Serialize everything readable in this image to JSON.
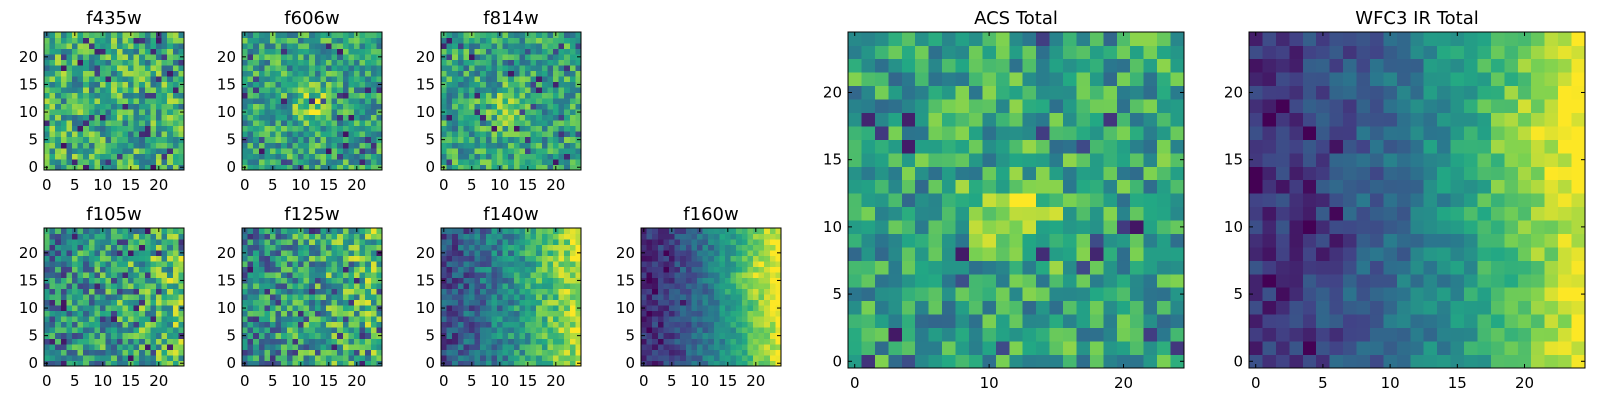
{
  "chart_data": [
    {
      "id": "f435w",
      "type": "heatmap",
      "title": "f435w",
      "grid": 25,
      "pattern": "noise_hi",
      "xticks": [
        "0",
        "5",
        "10",
        "15",
        "20"
      ],
      "yticks": [
        "0",
        "5",
        "10",
        "15",
        "20"
      ],
      "xlim": [
        -0.5,
        24.5
      ],
      "ylim": [
        -0.5,
        24.5
      ]
    },
    {
      "id": "f606w",
      "type": "heatmap",
      "title": "f606w",
      "grid": 25,
      "pattern": "noise_center",
      "xticks": [
        "0",
        "5",
        "10",
        "15",
        "20"
      ],
      "yticks": [
        "0",
        "5",
        "10",
        "15",
        "20"
      ],
      "xlim": [
        -0.5,
        24.5
      ],
      "ylim": [
        -0.5,
        24.5
      ]
    },
    {
      "id": "f814w",
      "type": "heatmap",
      "title": "f814w",
      "grid": 25,
      "pattern": "noise_center",
      "xticks": [
        "0",
        "5",
        "10",
        "15",
        "20"
      ],
      "yticks": [
        "0",
        "5",
        "10",
        "15",
        "20"
      ],
      "xlim": [
        -0.5,
        24.5
      ],
      "ylim": [
        -0.5,
        24.5
      ]
    },
    {
      "id": "f105w",
      "type": "heatmap",
      "title": "f105w",
      "grid": 25,
      "pattern": "mixed",
      "xticks": [
        "0",
        "5",
        "10",
        "15",
        "20"
      ],
      "yticks": [
        "0",
        "5",
        "10",
        "15",
        "20"
      ],
      "xlim": [
        -0.5,
        24.5
      ],
      "ylim": [
        -0.5,
        24.5
      ]
    },
    {
      "id": "f125w",
      "type": "heatmap",
      "title": "f125w",
      "grid": 25,
      "pattern": "mixed",
      "xticks": [
        "0",
        "5",
        "10",
        "15",
        "20"
      ],
      "yticks": [
        "0",
        "5",
        "10",
        "15",
        "20"
      ],
      "xlim": [
        -0.5,
        24.5
      ],
      "ylim": [
        -0.5,
        24.5
      ]
    },
    {
      "id": "f140w",
      "type": "heatmap",
      "title": "f140w",
      "grid": 25,
      "pattern": "gradient",
      "xticks": [
        "0",
        "5",
        "10",
        "15",
        "20"
      ],
      "yticks": [
        "0",
        "5",
        "10",
        "15",
        "20"
      ],
      "xlim": [
        -0.5,
        24.5
      ],
      "ylim": [
        -0.5,
        24.5
      ]
    },
    {
      "id": "f160w",
      "type": "heatmap",
      "title": "f160w",
      "grid": 25,
      "pattern": "gradient_strong",
      "xticks": [
        "0",
        "5",
        "10",
        "15",
        "20"
      ],
      "yticks": [
        "0",
        "5",
        "10",
        "15",
        "20"
      ],
      "xlim": [
        -0.5,
        24.5
      ],
      "ylim": [
        -0.5,
        24.5
      ]
    },
    {
      "id": "acs_total",
      "type": "heatmap",
      "title": "ACS Total",
      "grid": 25,
      "pattern": "noise_center",
      "xticks": [
        "0",
        "10",
        "20"
      ],
      "yticks": [
        "0",
        "5",
        "10",
        "15",
        "20"
      ],
      "xlim": [
        -0.5,
        24.5
      ],
      "ylim": [
        -0.5,
        24.5
      ]
    },
    {
      "id": "wfc3_ir_total",
      "type": "heatmap",
      "title": "WFC3 IR Total",
      "grid": 25,
      "pattern": "gradient_strong",
      "xticks": [
        "0",
        "5",
        "10",
        "15",
        "20"
      ],
      "yticks": [
        "0",
        "5",
        "10",
        "15",
        "20"
      ],
      "xlim": [
        -0.5,
        24.5
      ],
      "ylim": [
        -0.5,
        24.5
      ]
    }
  ],
  "colormap": [
    "#440154",
    "#414487",
    "#2a788e",
    "#22a884",
    "#7ad151",
    "#fde725"
  ]
}
